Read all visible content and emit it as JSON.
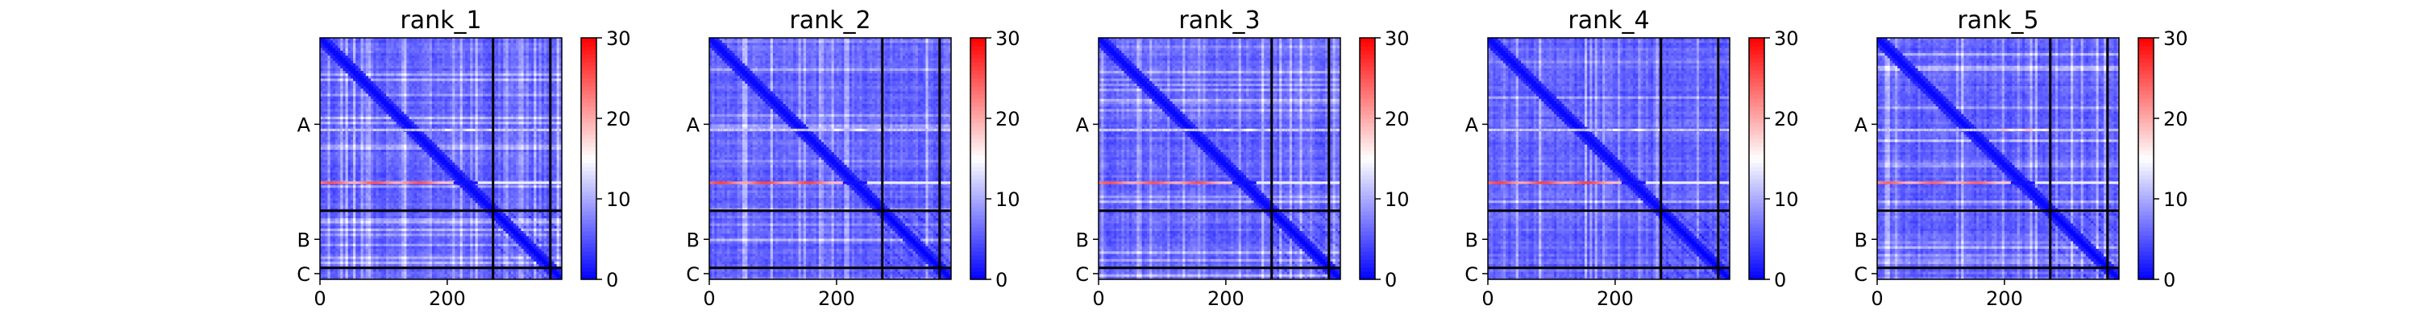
{
  "chart_data": [
    {
      "type": "heatmap",
      "title": "rank_1",
      "x_ticks": [
        0,
        200
      ],
      "xlim": [
        0,
        380
      ],
      "y_ticks": [
        "A",
        "B",
        "C"
      ],
      "chains": [
        {
          "name": "A",
          "start": 0,
          "end": 272
        },
        {
          "name": "B",
          "start": 272,
          "end": 362
        },
        {
          "name": "C",
          "start": 362,
          "end": 380
        }
      ],
      "colorbar": {
        "min": 0,
        "max": 30,
        "ticks": [
          0,
          10,
          20,
          30
        ],
        "colormap": "bwr"
      },
      "hot_rows": [
        {
          "y": 228,
          "max": 25
        },
        {
          "y": 145,
          "max": 15
        }
      ]
    },
    {
      "type": "heatmap",
      "title": "rank_2",
      "x_ticks": [
        0,
        200
      ],
      "xlim": [
        0,
        380
      ],
      "y_ticks": [
        "A",
        "B",
        "C"
      ],
      "chains": [
        {
          "name": "A",
          "start": 0,
          "end": 272
        },
        {
          "name": "B",
          "start": 272,
          "end": 362
        },
        {
          "name": "C",
          "start": 362,
          "end": 380
        }
      ],
      "colorbar": {
        "min": 0,
        "max": 30,
        "ticks": [
          0,
          10,
          20,
          30
        ],
        "colormap": "bwr"
      },
      "hot_rows": [
        {
          "y": 228,
          "max": 26
        },
        {
          "y": 145,
          "max": 15
        }
      ]
    },
    {
      "type": "heatmap",
      "title": "rank_3",
      "x_ticks": [
        0,
        200
      ],
      "xlim": [
        0,
        380
      ],
      "y_ticks": [
        "A",
        "B",
        "C"
      ],
      "chains": [
        {
          "name": "A",
          "start": 0,
          "end": 272
        },
        {
          "name": "B",
          "start": 272,
          "end": 362
        },
        {
          "name": "C",
          "start": 362,
          "end": 380
        }
      ],
      "colorbar": {
        "min": 0,
        "max": 30,
        "ticks": [
          0,
          10,
          20,
          30
        ],
        "colormap": "bwr"
      },
      "hot_rows": [
        {
          "y": 228,
          "max": 25
        },
        {
          "y": 145,
          "max": 15
        }
      ]
    },
    {
      "type": "heatmap",
      "title": "rank_4",
      "x_ticks": [
        0,
        200
      ],
      "xlim": [
        0,
        380
      ],
      "y_ticks": [
        "A",
        "B",
        "C"
      ],
      "chains": [
        {
          "name": "A",
          "start": 0,
          "end": 272
        },
        {
          "name": "B",
          "start": 272,
          "end": 362
        },
        {
          "name": "C",
          "start": 362,
          "end": 380
        }
      ],
      "colorbar": {
        "min": 0,
        "max": 30,
        "ticks": [
          0,
          10,
          20,
          30
        ],
        "colormap": "bwr"
      },
      "hot_rows": [
        {
          "y": 228,
          "max": 26
        },
        {
          "y": 145,
          "max": 15
        }
      ]
    },
    {
      "type": "heatmap",
      "title": "rank_5",
      "x_ticks": [
        0,
        200
      ],
      "xlim": [
        0,
        380
      ],
      "y_ticks": [
        "A",
        "B",
        "C"
      ],
      "chains": [
        {
          "name": "A",
          "start": 0,
          "end": 272
        },
        {
          "name": "B",
          "start": 272,
          "end": 362
        },
        {
          "name": "C",
          "start": 362,
          "end": 380
        }
      ],
      "colorbar": {
        "min": 0,
        "max": 30,
        "ticks": [
          0,
          10,
          20,
          30
        ],
        "colormap": "bwr"
      },
      "hot_rows": [
        {
          "y": 228,
          "max": 24
        },
        {
          "y": 145,
          "max": 19
        }
      ]
    }
  ]
}
